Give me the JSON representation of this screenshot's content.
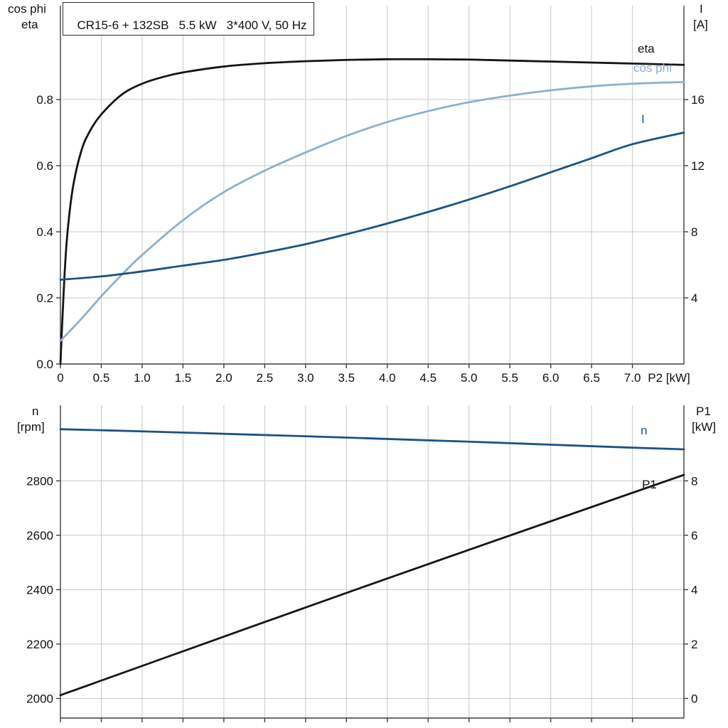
{
  "colors": {
    "black": "#151515",
    "dark_blue": "#1b5384",
    "light_blue": "#8cafd2",
    "grid": "#c9c9c9",
    "axis": "#3f3f3f"
  },
  "chart_data": [
    {
      "type": "line",
      "title": "CR15-6 + 132SB   5.5 kW   3*400 V, 50 Hz",
      "x_axis": {
        "label": "P2 [kW]",
        "min": 0,
        "max": 7.63,
        "ticks": [
          0,
          0.5,
          1,
          1.5,
          2,
          2.5,
          3,
          3.5,
          4,
          4.5,
          5,
          5.5,
          6,
          6.5,
          7
        ],
        "tick_labels": [
          "0",
          "0.5",
          "1.0",
          "1.5",
          "2.0",
          "2.5",
          "3.0",
          "3.5",
          "4.0",
          "4.5",
          "5.0",
          "5.5",
          "6.0",
          "6.5",
          "7.0"
        ]
      },
      "left_axis": {
        "label_lines": [
          "cos phi",
          "eta"
        ],
        "min": 0,
        "max": 1.084,
        "ticks": [
          0,
          0.2,
          0.4,
          0.6,
          0.8
        ],
        "tick_labels": [
          "0.0",
          "0.2",
          "0.4",
          "0.6",
          "0.8"
        ]
      },
      "right_axis": {
        "label_lines": [
          "I",
          "[A]"
        ],
        "min": 0,
        "max": 21.68,
        "ticks": [
          4,
          8,
          12,
          16
        ],
        "tick_labels": [
          "4",
          "8",
          "12",
          "16"
        ]
      },
      "series": [
        {
          "name": "eta",
          "axis": "left",
          "color": "black",
          "points": [
            [
              0,
              0
            ],
            [
              0.04,
              0.22
            ],
            [
              0.08,
              0.38
            ],
            [
              0.15,
              0.53
            ],
            [
              0.25,
              0.64
            ],
            [
              0.35,
              0.7
            ],
            [
              0.5,
              0.755
            ],
            [
              0.75,
              0.815
            ],
            [
              1,
              0.848
            ],
            [
              1.25,
              0.868
            ],
            [
              1.5,
              0.882
            ],
            [
              2,
              0.9
            ],
            [
              2.5,
              0.91
            ],
            [
              3,
              0.916
            ],
            [
              3.5,
              0.92
            ],
            [
              4,
              0.922
            ],
            [
              4.5,
              0.922
            ],
            [
              5,
              0.921
            ],
            [
              5.5,
              0.918
            ],
            [
              6,
              0.915
            ],
            [
              6.5,
              0.912
            ],
            [
              7,
              0.909
            ],
            [
              7.63,
              0.905
            ]
          ]
        },
        {
          "name": "cos phi",
          "axis": "left",
          "color": "light_blue",
          "points": [
            [
              0,
              0.07
            ],
            [
              0.25,
              0.135
            ],
            [
              0.5,
              0.205
            ],
            [
              0.75,
              0.27
            ],
            [
              1,
              0.33
            ],
            [
              1.5,
              0.435
            ],
            [
              2,
              0.52
            ],
            [
              2.5,
              0.585
            ],
            [
              3,
              0.64
            ],
            [
              3.5,
              0.69
            ],
            [
              4,
              0.732
            ],
            [
              4.5,
              0.765
            ],
            [
              5,
              0.792
            ],
            [
              5.5,
              0.812
            ],
            [
              6,
              0.828
            ],
            [
              6.5,
              0.84
            ],
            [
              7,
              0.848
            ],
            [
              7.63,
              0.853
            ]
          ]
        },
        {
          "name": "I",
          "axis": "right",
          "color": "dark_blue",
          "points": [
            [
              0,
              5.1
            ],
            [
              0.5,
              5.3
            ],
            [
              1,
              5.6
            ],
            [
              1.5,
              5.95
            ],
            [
              2,
              6.3
            ],
            [
              2.5,
              6.75
            ],
            [
              3,
              7.25
            ],
            [
              3.5,
              7.85
            ],
            [
              4,
              8.5
            ],
            [
              4.5,
              9.2
            ],
            [
              5,
              9.95
            ],
            [
              5.5,
              10.75
            ],
            [
              6,
              11.6
            ],
            [
              6.5,
              12.45
            ],
            [
              7,
              13.3
            ],
            [
              7.63,
              14.0
            ]
          ]
        }
      ]
    },
    {
      "type": "line",
      "title": "",
      "x_axis": {
        "label": "",
        "min": 0,
        "max": 7.63,
        "ticks": [
          0,
          0.5,
          1,
          1.5,
          2,
          2.5,
          3,
          3.5,
          4,
          4.5,
          5,
          5.5,
          6,
          6.5,
          7
        ],
        "tick_labels": []
      },
      "left_axis": {
        "label_lines": [
          "n",
          "[rpm]"
        ],
        "min": 1928,
        "max": 3078,
        "ticks": [
          2000,
          2200,
          2400,
          2600,
          2800
        ],
        "tick_labels": [
          "2000",
          "2200",
          "2400",
          "2600",
          "2800"
        ]
      },
      "right_axis": {
        "label_lines": [
          "P1",
          "[kW]"
        ],
        "min": -0.72,
        "max": 10.78,
        "ticks": [
          0,
          2,
          4,
          6,
          8
        ],
        "tick_labels": [
          "0",
          "2",
          "4",
          "6",
          "8"
        ]
      },
      "series": [
        {
          "name": "n",
          "axis": "left",
          "color": "dark_blue",
          "points": [
            [
              0,
              2990
            ],
            [
              1,
              2982
            ],
            [
              2,
              2973
            ],
            [
              3,
              2964
            ],
            [
              4,
              2954
            ],
            [
              5,
              2944
            ],
            [
              6,
              2933
            ],
            [
              7,
              2922
            ],
            [
              7.63,
              2916
            ]
          ]
        },
        {
          "name": "P1",
          "axis": "right",
          "color": "black",
          "points": [
            [
              0,
              0.12
            ],
            [
              3.8,
              4.2
            ],
            [
              7.63,
              8.22
            ]
          ]
        }
      ]
    }
  ]
}
